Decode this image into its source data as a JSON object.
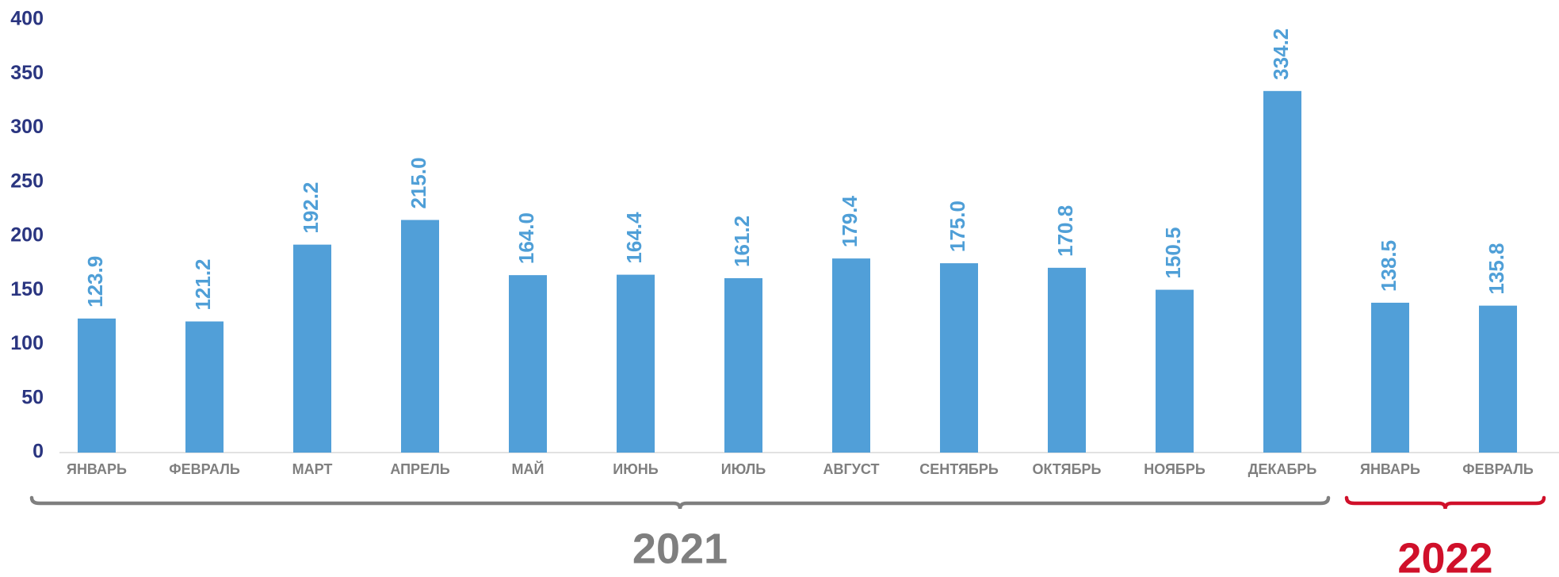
{
  "chart_data": {
    "type": "bar",
    "groups": [
      {
        "label": "2021",
        "color": "#7f7f7f",
        "categories": [
          "ЯНВАРЬ",
          "ФЕВРАЛЬ",
          "МАРТ",
          "АПРЕЛЬ",
          "МАЙ",
          "ИЮНЬ",
          "ИЮЛЬ",
          "АВГУСТ",
          "СЕНТЯБРЬ",
          "ОКТЯБРЬ",
          "НОЯБРЬ",
          "ДЕКАБРЬ"
        ]
      },
      {
        "label": "2022",
        "color": "#d0102a",
        "categories": [
          "ЯНВАРЬ",
          "ФЕВРАЛЬ"
        ]
      }
    ],
    "values": [
      123.9,
      121.2,
      192.2,
      215.0,
      164.0,
      164.4,
      161.2,
      179.4,
      175.0,
      170.8,
      150.5,
      334.2,
      138.5,
      135.8
    ],
    "value_labels": [
      "123.9",
      "121.2",
      "192.2",
      "215.0",
      "164.0",
      "164.4",
      "161.2",
      "179.4",
      "175.0",
      "170.8",
      "150.5",
      "334.2",
      "138.5",
      "135.8"
    ],
    "color": "#519fd8",
    "ylim": [
      0,
      400
    ],
    "yticks": [
      0,
      50,
      100,
      150,
      200,
      250,
      300,
      350,
      400
    ],
    "grid": false
  }
}
